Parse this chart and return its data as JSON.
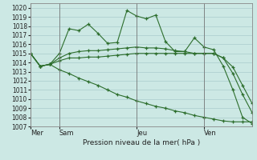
{
  "background_color": "#cce8e4",
  "grid_color": "#aacccc",
  "line_color": "#2d6e2d",
  "marker_color": "#2d6e2d",
  "title": "Pression niveau de la mer( hPa )",
  "ylim": [
    1007,
    1020.5
  ],
  "yticks": [
    1007,
    1008,
    1009,
    1010,
    1011,
    1012,
    1013,
    1014,
    1015,
    1016,
    1017,
    1018,
    1019,
    1020
  ],
  "day_labels": [
    "Mer",
    "Sam",
    "Jeu",
    "Ven"
  ],
  "day_positions": [
    0,
    3,
    11,
    18
  ],
  "total_points": 24,
  "series": [
    [
      1015.0,
      1013.6,
      1013.8,
      1015.0,
      1017.7,
      1017.5,
      1018.2,
      1017.2,
      1016.1,
      1016.2,
      1019.7,
      1019.1,
      1018.8,
      1019.2,
      1016.3,
      1015.2,
      1015.2,
      1016.7,
      1015.7,
      1015.4,
      1013.6,
      1011.0,
      1008.0,
      1007.3
    ],
    [
      1015.0,
      1013.6,
      1013.8,
      1014.5,
      1015.0,
      1015.2,
      1015.3,
      1015.3,
      1015.4,
      1015.5,
      1015.6,
      1015.7,
      1015.6,
      1015.6,
      1015.5,
      1015.3,
      1015.2,
      1015.0,
      1015.0,
      1015.0,
      1014.5,
      1013.5,
      1011.5,
      1009.5
    ],
    [
      1015.0,
      1013.6,
      1013.8,
      1014.2,
      1014.5,
      1014.5,
      1014.6,
      1014.6,
      1014.7,
      1014.8,
      1014.9,
      1015.0,
      1015.0,
      1015.0,
      1015.0,
      1015.0,
      1015.0,
      1015.0,
      1015.0,
      1015.0,
      1014.5,
      1012.8,
      1010.5,
      1008.5
    ],
    [
      1015.0,
      1013.6,
      1013.8,
      1013.2,
      1012.8,
      1012.3,
      1011.9,
      1011.5,
      1011.0,
      1010.5,
      1010.2,
      1009.8,
      1009.5,
      1009.2,
      1009.0,
      1008.7,
      1008.5,
      1008.2,
      1008.0,
      1007.8,
      1007.6,
      1007.5,
      1007.5,
      1007.5
    ]
  ]
}
